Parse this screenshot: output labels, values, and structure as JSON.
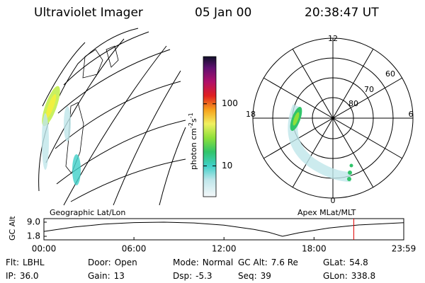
{
  "header": {
    "title": "Ultraviolet Imager",
    "date": "05 Jan 00",
    "time": "20:38:47 UT"
  },
  "left_panel": {
    "label": "Geographic Lat/Lon"
  },
  "colorbar": {
    "label": "photon cm",
    "exp1": "-2",
    "unit2": "s",
    "exp2": "-1",
    "clim": [
      3.2,
      575
    ],
    "log": true,
    "ticks": [
      10,
      100
    ]
  },
  "right_panel": {
    "label": "Apex MLat/MLT",
    "mlt_top": "12",
    "mlt_left": "18",
    "mlt_right": "6",
    "mlt_bottom": "0",
    "lat_60": "60",
    "lat_70": "70",
    "lat_80": "80"
  },
  "timeline": {
    "ylabel": "GC Alt",
    "ylim": [
      0,
      10.8
    ],
    "yticks": [
      9.0,
      1.8
    ],
    "yticks_labels": [
      "9.0",
      "1.8"
    ],
    "xlim": [
      0,
      23.98
    ],
    "xticks": [
      {
        "value": 0,
        "label": "00:00"
      },
      {
        "value": 6,
        "label": "06:00"
      },
      {
        "value": 12,
        "label": "12:00"
      },
      {
        "value": 18,
        "label": "18:00"
      },
      {
        "value": 23.98,
        "label": "23:59"
      }
    ],
    "x": [
      0,
      2,
      4,
      6,
      8,
      10,
      12,
      14,
      15,
      15.9,
      17,
      19,
      21,
      23.98
    ],
    "values": [
      4.3,
      6.5,
      8.0,
      8.8,
      9.0,
      8.6,
      7.5,
      5.3,
      3.8,
      1.8,
      3.6,
      6.0,
      7.6,
      8.7
    ],
    "marker": 20.65,
    "marker_color": "#e00000"
  },
  "footer": {
    "rows": [
      [
        {
          "label": "Flt:",
          "value": "LBHL"
        },
        {
          "label": "Door:",
          "value": "Open"
        },
        {
          "label": "Mode:",
          "value": "Normal"
        },
        {
          "label": "GC Alt:",
          "value": "7.6 Re"
        },
        {
          "label": "GLat:",
          "value": "54.8"
        }
      ],
      [
        {
          "label": "IP:",
          "value": "36.0"
        },
        {
          "label": "Gain:",
          "value": "13"
        },
        {
          "label": "Dsp:",
          "value": "-5.3"
        },
        {
          "label": "Seq:",
          "value": "39"
        },
        {
          "label": "GLon:",
          "value": "338.8"
        }
      ]
    ]
  }
}
